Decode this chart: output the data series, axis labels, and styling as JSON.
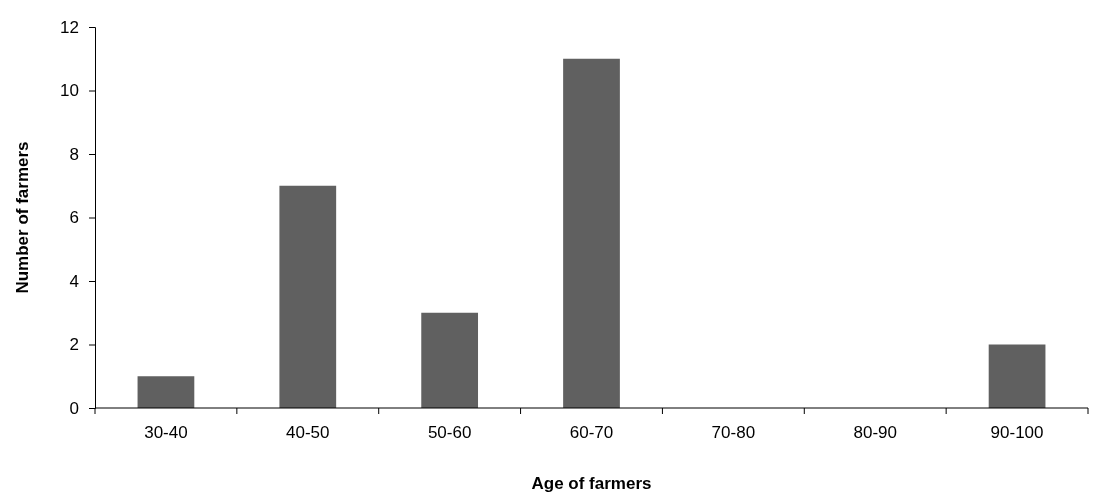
{
  "chart_data": {
    "type": "bar",
    "xlabel": "Age of farmers",
    "ylabel": "Number of farmers",
    "categories": [
      "30-40",
      "40-50",
      "50-60",
      "60-70",
      "70-80",
      "80-90",
      "90-100"
    ],
    "values": [
      1,
      7,
      3,
      11,
      0,
      0,
      2
    ],
    "color": "#606060",
    "ylim": [
      0,
      12
    ],
    "yticks": [
      0,
      2,
      4,
      6,
      8,
      10,
      12
    ]
  }
}
